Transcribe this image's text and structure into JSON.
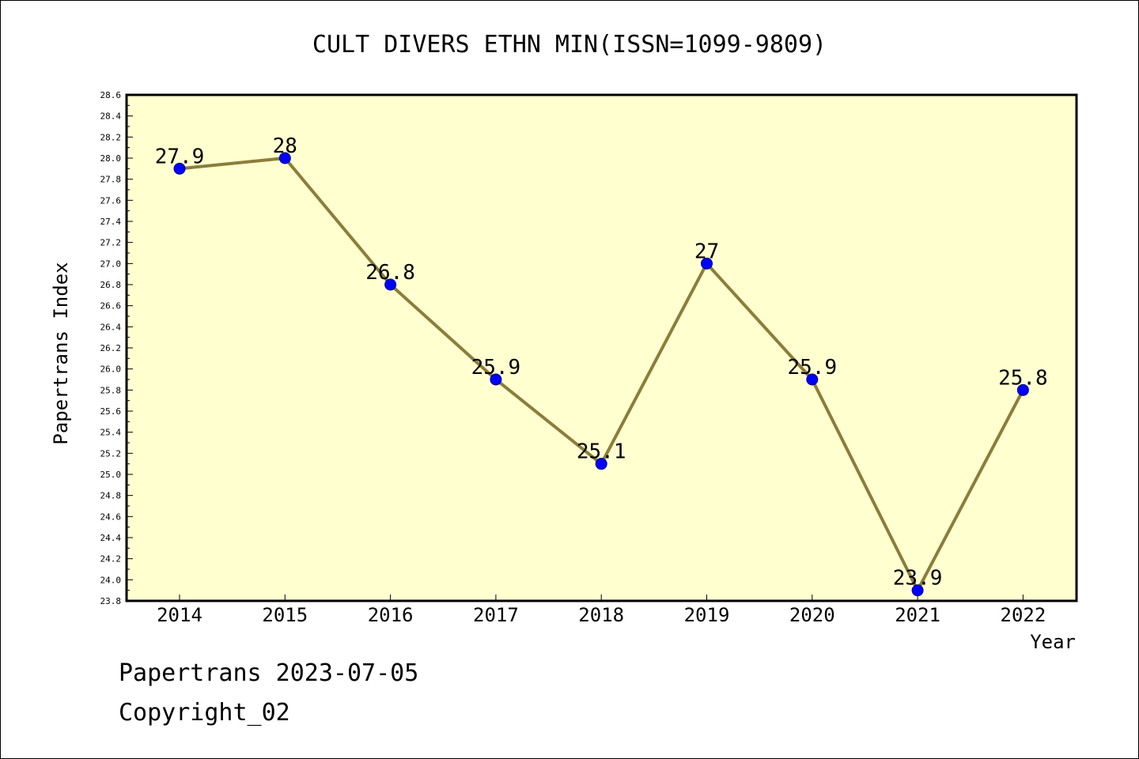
{
  "chart_data": {
    "type": "line",
    "title": "CULT DIVERS ETHN MIN(ISSN=1099-9809)",
    "xlabel": "Year",
    "ylabel": "Papertrans Index",
    "x": [
      "2014",
      "2015",
      "2016",
      "2017",
      "2018",
      "2019",
      "2020",
      "2021",
      "2022"
    ],
    "values": [
      27.9,
      28.0,
      26.8,
      25.9,
      25.1,
      27.0,
      25.9,
      23.9,
      25.8
    ],
    "data_labels": [
      "27.9",
      "28",
      "26.8",
      "25.9",
      "25.1",
      "27",
      "25.9",
      "23.9",
      "25.8"
    ],
    "ylim": [
      23.8,
      28.6
    ],
    "yticks": [
      "23.8",
      "24.0",
      "24.2",
      "24.4",
      "24.6",
      "24.8",
      "25.0",
      "25.2",
      "25.4",
      "25.6",
      "25.8",
      "26.0",
      "26.2",
      "26.4",
      "26.6",
      "26.8",
      "27.0",
      "27.2",
      "27.4",
      "27.6",
      "27.8",
      "28.0",
      "28.2",
      "28.4",
      "28.6"
    ],
    "grid": false,
    "legend": "none",
    "colors": {
      "plot_background": "#ffffd0",
      "line": "#8b7d3a",
      "marker": "#0000ff"
    }
  },
  "footer": {
    "line1": "Papertrans 2023-07-05",
    "line2": "Copyright_02"
  }
}
